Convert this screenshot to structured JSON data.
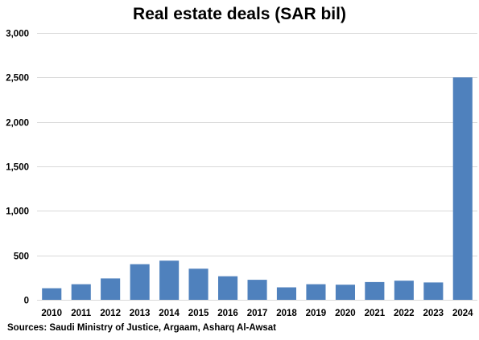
{
  "chart_data": {
    "type": "bar",
    "title": "Real estate deals (SAR bil)",
    "categories": [
      "2010",
      "2011",
      "2012",
      "2013",
      "2014",
      "2015",
      "2016",
      "2017",
      "2018",
      "2019",
      "2020",
      "2021",
      "2022",
      "2023",
      "2024"
    ],
    "values": [
      130,
      175,
      240,
      400,
      440,
      350,
      265,
      225,
      140,
      175,
      170,
      200,
      215,
      195,
      2500
    ],
    "ylim": [
      0,
      3000
    ],
    "yticks": [
      0,
      500,
      1000,
      1500,
      2000,
      2500,
      3000
    ],
    "ytick_labels": [
      "0",
      "500",
      "1,000",
      "1,500",
      "2,000",
      "2,500",
      "3,000"
    ],
    "xlabel": "",
    "ylabel": "",
    "grid": "horizontal",
    "legend": "none",
    "bar_color": "#4f81bd",
    "grid_color": "#d9d9d9"
  },
  "source": "Sources: Saudi Ministry of Justice, Argaam, Asharq Al-Awsat"
}
